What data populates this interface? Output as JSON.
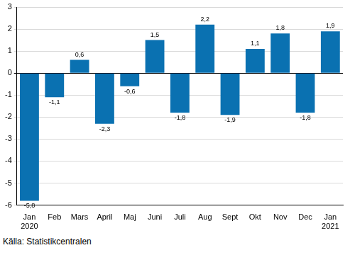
{
  "chart_data": {
    "type": "bar",
    "categories": [
      "Jan\n2020",
      "Feb",
      "Mars",
      "April",
      "Maj",
      "Juni",
      "Juli",
      "Aug",
      "Sept",
      "Okt",
      "Nov",
      "Dec",
      "Jan\n2021"
    ],
    "values": [
      -5.8,
      -1.1,
      0.6,
      -2.3,
      -0.6,
      1.5,
      -1.8,
      2.2,
      -1.9,
      1.1,
      1.8,
      -1.8,
      1.9
    ],
    "value_labels": [
      "-5,8",
      "-1,1",
      "0,6",
      "-2,3",
      "-0,6",
      "1,5",
      "-1,8",
      "2,2",
      "-1,9",
      "1,1",
      "1,8",
      "-1,8",
      "1,9"
    ],
    "color": "#0a71b1",
    "ylim": [
      -6,
      3
    ],
    "yticks": [
      -6,
      -5,
      -4,
      -3,
      -2,
      -1,
      0,
      1,
      2,
      3
    ],
    "grid": true,
    "data_labels": true,
    "source": "Källa: Statistikcentralen"
  }
}
